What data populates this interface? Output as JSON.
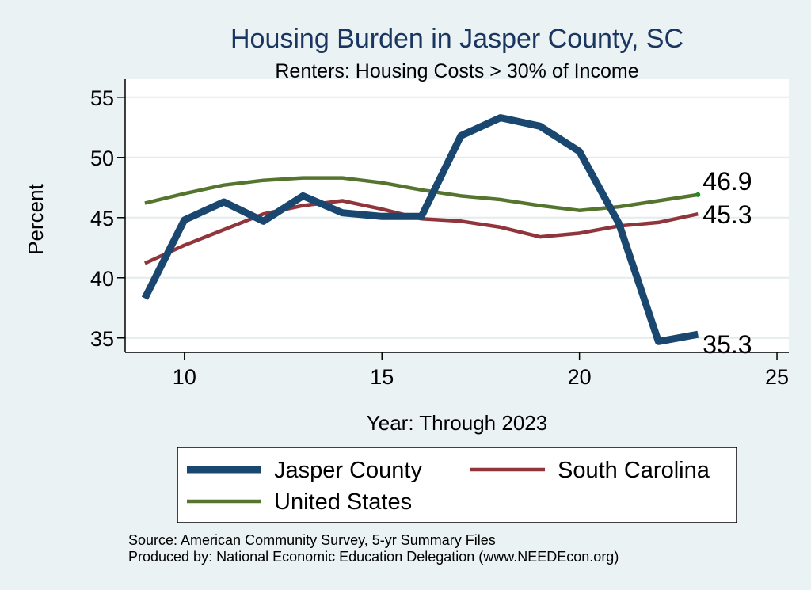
{
  "chart_data": {
    "type": "line",
    "title": "Housing Burden in Jasper County, SC",
    "subtitle": "Renters: Housing Costs > 30% of Income",
    "xlabel": "Year: Through 2023",
    "ylabel": "Percent",
    "xlim": [
      8.5,
      25.3
    ],
    "ylim": [
      33.8,
      56.5
    ],
    "xticks": [
      10,
      15,
      20,
      25
    ],
    "yticks": [
      35,
      40,
      45,
      50,
      55
    ],
    "grid": true,
    "x": [
      9,
      10,
      11,
      12,
      13,
      14,
      15,
      16,
      17,
      18,
      19,
      20,
      21,
      22,
      23
    ],
    "series": [
      {
        "name": "Jasper County",
        "color": "#1a476f",
        "width": 9,
        "end_label": "35.3",
        "values": [
          38.3,
          44.8,
          46.3,
          44.7,
          46.8,
          45.4,
          45.1,
          45.1,
          51.8,
          53.3,
          52.6,
          50.5,
          44.5,
          34.7,
          35.3
        ]
      },
      {
        "name": "South Carolina",
        "color": "#90353b",
        "width": 4.5,
        "end_label": "45.3",
        "values": [
          41.2,
          42.7,
          44.0,
          45.3,
          46.0,
          46.4,
          45.7,
          44.9,
          44.7,
          44.2,
          43.4,
          43.7,
          44.3,
          44.6,
          45.3
        ]
      },
      {
        "name": "United States",
        "color": "#55752f",
        "width": 4.5,
        "end_label": "46.9",
        "values": [
          46.2,
          47.0,
          47.7,
          48.1,
          48.3,
          48.3,
          47.9,
          47.3,
          46.8,
          46.5,
          46.0,
          45.6,
          45.9,
          46.4,
          46.9
        ]
      }
    ]
  },
  "source": {
    "line1": "Source: American Community Survey, 5-yr Summary Files",
    "line2": "Produced by: National Economic Education Delegation (www.NEEDEcon.org)"
  }
}
